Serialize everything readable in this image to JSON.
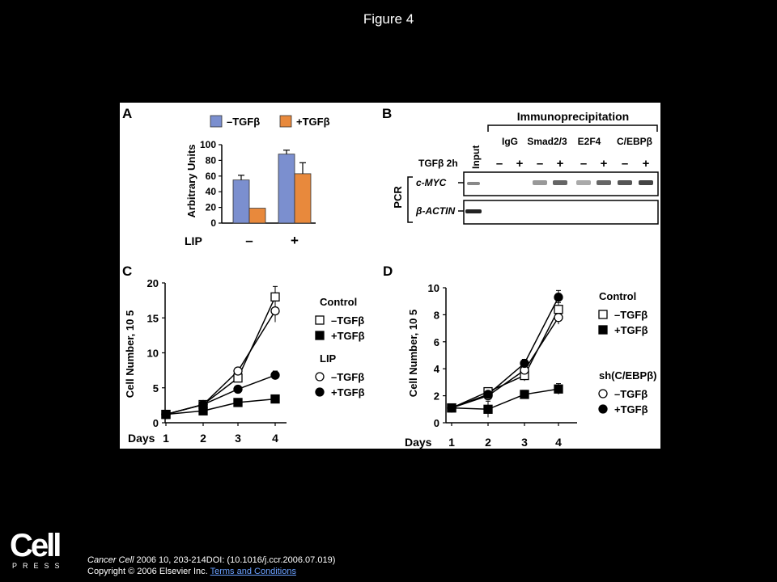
{
  "title": "Figure 4",
  "footer": {
    "logo_word": "Cell",
    "logo_sub": "PRESS",
    "journal": "Cancer Cell",
    "citation_rest": " 2006 10, 203-214DOI: (10.1016/j.ccr.2006.07.019)",
    "copyright": "Copyright © 2006 Elsevier Inc.",
    "terms_link": "Terms and Conditions"
  },
  "panelB": {
    "letter": "B",
    "header": "Immunoprecipitation",
    "input_label": "Input",
    "row_label": "TGFβ 2h",
    "groups": [
      "IgG",
      "Smad2/3",
      "E2F4",
      "C/EBPβ"
    ],
    "signs": [
      "–",
      "+",
      "–",
      "+",
      "–",
      "+",
      "–",
      "+"
    ],
    "side_label": "PCR",
    "gene_labels": [
      "c-MYC",
      "β-ACTIN"
    ]
  },
  "chart_data": [
    {
      "panel": "A",
      "type": "bar",
      "ylabel": "Arbitrary Units",
      "ylim": [
        0,
        100
      ],
      "yticks": [
        0,
        20,
        40,
        60,
        80,
        100
      ],
      "group_label": "LIP",
      "categories": [
        "–",
        "+"
      ],
      "series": [
        {
          "name": "–TGFβ",
          "color": "#7b8fcf",
          "values": [
            55,
            88
          ],
          "errors": [
            6,
            5
          ]
        },
        {
          "name": "+TGFβ",
          "color": "#e8893c",
          "values": [
            19,
            63
          ],
          "errors": [
            0,
            14
          ]
        }
      ],
      "legend": "top"
    },
    {
      "panel": "C",
      "type": "line",
      "ylabel": "Cell Number, 10 5",
      "xlabel": "Days",
      "x": [
        1,
        2,
        3,
        4
      ],
      "ylim": [
        0,
        20
      ],
      "yticks": [
        0,
        5,
        10,
        15,
        20
      ],
      "legend_groups": [
        "Control",
        "LIP"
      ],
      "series": [
        {
          "name": "–TGFβ",
          "group": "Control",
          "marker": "square-open",
          "values": [
            1.2,
            2.6,
            6.4,
            18.0
          ],
          "errors": [
            0,
            0.3,
            0.5,
            1.5
          ]
        },
        {
          "name": "+TGFβ",
          "group": "Control",
          "marker": "square-filled",
          "values": [
            1.2,
            1.7,
            2.9,
            3.4
          ],
          "errors": [
            0,
            0.2,
            0.3,
            0.3
          ]
        },
        {
          "name": "–TGFβ",
          "group": "LIP",
          "marker": "circle-open",
          "values": [
            1.2,
            2.6,
            7.4,
            16.0
          ],
          "errors": [
            0,
            0.3,
            0.5,
            1.6
          ]
        },
        {
          "name": "+TGFβ",
          "group": "LIP",
          "marker": "circle-filled",
          "values": [
            1.2,
            2.6,
            4.8,
            6.8
          ],
          "errors": [
            0,
            0.3,
            0.4,
            0.6
          ]
        }
      ],
      "legend": "right"
    },
    {
      "panel": "D",
      "type": "line",
      "ylabel": "Cell Number, 10 5",
      "xlabel": "Days",
      "x": [
        1,
        2,
        3,
        4
      ],
      "ylim": [
        0,
        10
      ],
      "yticks": [
        0,
        2,
        4,
        6,
        8,
        10
      ],
      "legend_groups": [
        "Control",
        "sh(C/EBPβ)"
      ],
      "series": [
        {
          "name": "–TGFβ",
          "group": "Control",
          "marker": "square-open",
          "values": [
            1.1,
            2.3,
            3.5,
            8.4
          ],
          "errors": [
            0,
            0.2,
            0.4,
            0.5
          ]
        },
        {
          "name": "+TGFβ",
          "group": "Control",
          "marker": "square-filled",
          "values": [
            1.1,
            1.0,
            2.1,
            2.5
          ],
          "errors": [
            0,
            0.6,
            0.3,
            0.4
          ]
        },
        {
          "name": "–TGFβ",
          "group": "sh(C/EBPβ)",
          "marker": "circle-open",
          "values": [
            1.1,
            2.0,
            3.9,
            7.8
          ],
          "errors": [
            0,
            0.2,
            0.3,
            0.5
          ]
        },
        {
          "name": "+TGFβ",
          "group": "sh(C/EBPβ)",
          "marker": "circle-filled",
          "values": [
            1.1,
            2.1,
            4.4,
            9.3
          ],
          "errors": [
            0,
            0.2,
            0.3,
            0.5
          ]
        }
      ],
      "legend": "right"
    }
  ]
}
